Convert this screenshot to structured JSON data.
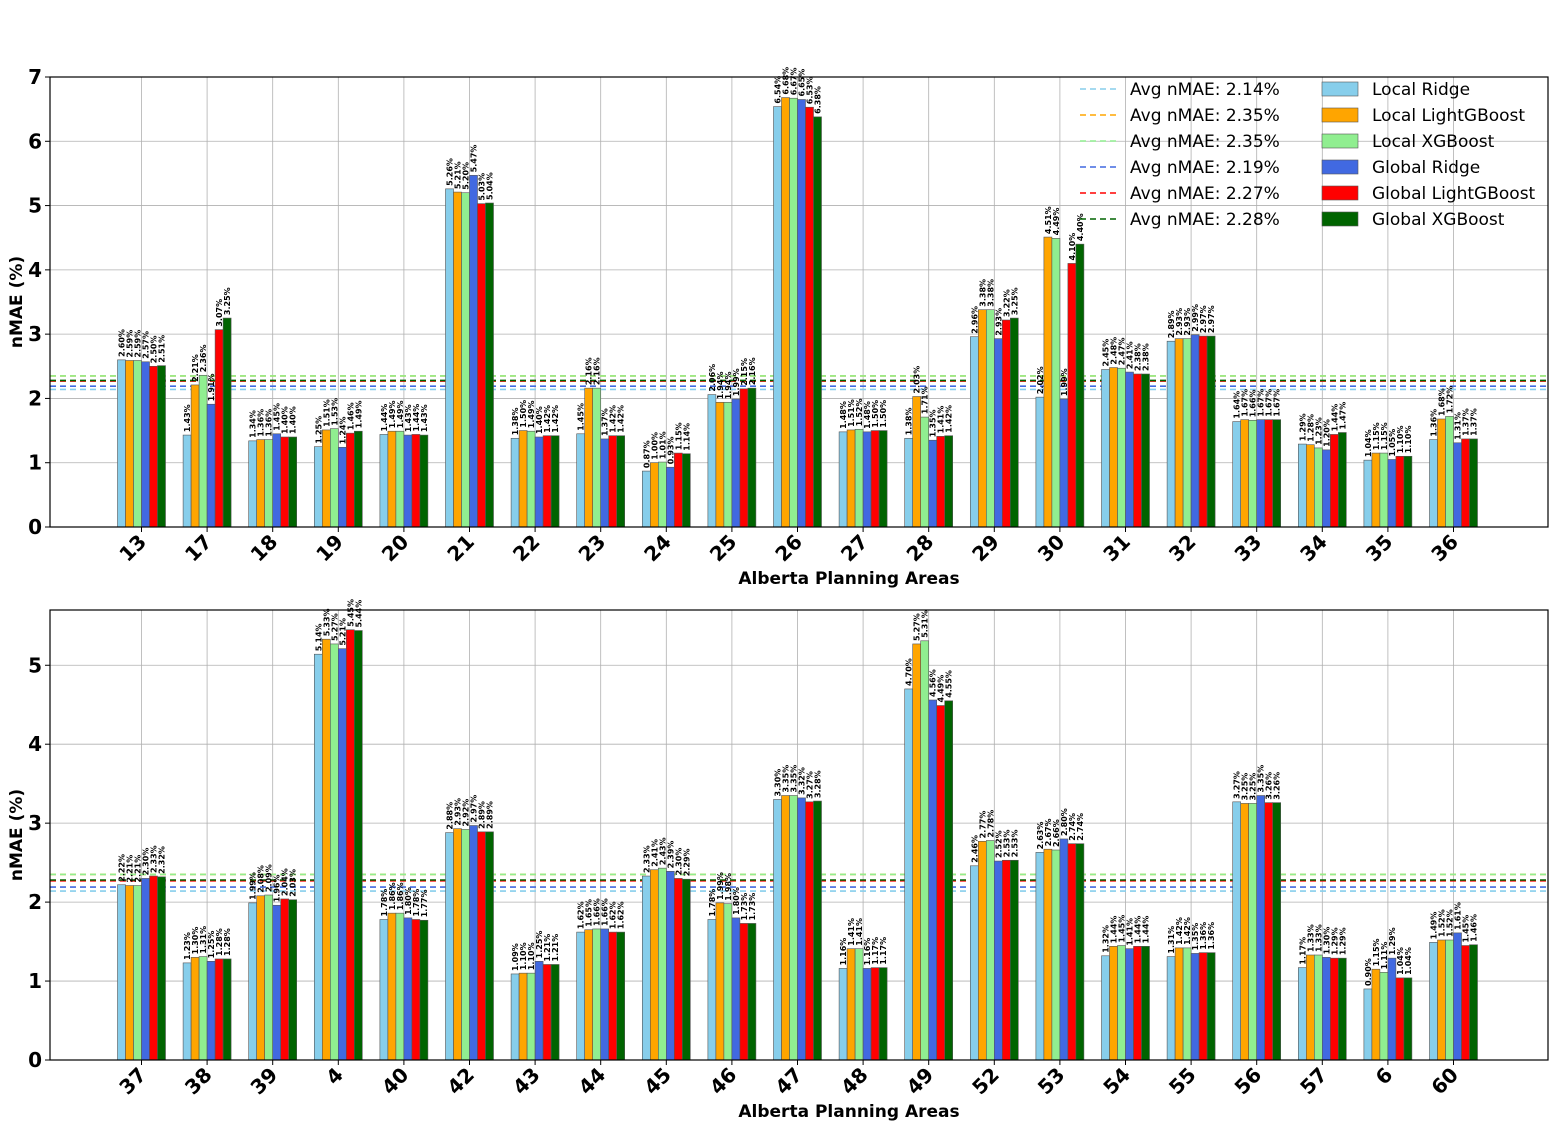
{
  "figure": {
    "legend_position": "upper-right of top panel"
  },
  "series_styles": [
    {
      "name": "Local Ridge",
      "color": "#87ceeb"
    },
    {
      "name": "Local LightGBoost",
      "color": "#ffa500"
    },
    {
      "name": "Local XGBoost",
      "color": "#90ee90"
    },
    {
      "name": "Global Ridge",
      "color": "#4169e1"
    },
    {
      "name": "Global LightGBoost",
      "color": "#ff0000"
    },
    {
      "name": "Global XGBoost",
      "color": "#006400"
    }
  ],
  "avg_lines": [
    {
      "label": "Avg nMAE: 2.14%",
      "value": 2.14,
      "color": "#87ceeb"
    },
    {
      "label": "Avg nMAE: 2.35%",
      "value": 2.35,
      "color": "#ffa500"
    },
    {
      "label": "Avg nMAE: 2.35%",
      "value": 2.35,
      "color": "#90ee90"
    },
    {
      "label": "Avg nMAE: 2.19%",
      "value": 2.19,
      "color": "#4169e1"
    },
    {
      "label": "Avg nMAE: 2.27%",
      "value": 2.27,
      "color": "#ff0000"
    },
    {
      "label": "Avg nMAE: 2.28%",
      "value": 2.28,
      "color": "#006400"
    }
  ],
  "chart_data": [
    {
      "type": "bar",
      "xlabel": "Alberta Planning Areas",
      "ylabel": "nMAE (%)",
      "ylim": [
        0,
        7
      ],
      "yticks": [
        0,
        1,
        2,
        3,
        4,
        5,
        6,
        7
      ],
      "grid": true,
      "categories": [
        "13",
        "17",
        "18",
        "19",
        "20",
        "21",
        "22",
        "23",
        "24",
        "25",
        "26",
        "27",
        "28",
        "29",
        "30",
        "31",
        "32",
        "33",
        "34",
        "35",
        "36"
      ],
      "series": [
        {
          "name": "Local Ridge",
          "values": [
            2.6,
            1.43,
            1.34,
            1.25,
            1.44,
            5.26,
            1.38,
            1.45,
            0.87,
            2.06,
            6.54,
            1.48,
            1.38,
            2.96,
            2.02,
            2.45,
            2.89,
            1.64,
            1.29,
            1.04,
            1.36
          ]
        },
        {
          "name": "Local LightGBoost",
          "values": [
            2.59,
            2.21,
            1.36,
            1.51,
            1.49,
            5.21,
            1.5,
            2.16,
            1.0,
            1.94,
            6.68,
            1.51,
            2.03,
            3.38,
            4.51,
            2.48,
            2.93,
            1.67,
            1.28,
            1.15,
            1.68
          ]
        },
        {
          "name": "Local XGBoost",
          "values": [
            2.59,
            2.36,
            1.36,
            1.53,
            1.49,
            5.2,
            1.49,
            2.16,
            1.01,
            1.94,
            6.67,
            1.52,
            1.71,
            3.38,
            4.49,
            2.47,
            2.93,
            1.66,
            1.23,
            1.15,
            1.72
          ]
        },
        {
          "name": "Global Ridge",
          "values": [
            2.57,
            1.91,
            1.45,
            1.24,
            1.43,
            5.47,
            1.4,
            1.37,
            0.93,
            1.99,
            6.65,
            1.48,
            1.35,
            2.93,
            1.99,
            2.41,
            2.99,
            1.67,
            1.2,
            1.05,
            1.31
          ]
        },
        {
          "name": "Global LightGBoost",
          "values": [
            2.5,
            3.07,
            1.4,
            1.46,
            1.44,
            5.03,
            1.42,
            1.42,
            1.15,
            2.15,
            6.53,
            1.5,
            1.41,
            3.22,
            4.1,
            2.38,
            2.97,
            1.67,
            1.44,
            1.1,
            1.37
          ]
        },
        {
          "name": "Global XGBoost",
          "values": [
            2.51,
            3.25,
            1.4,
            1.49,
            1.43,
            5.04,
            1.42,
            1.42,
            1.14,
            2.16,
            6.38,
            1.5,
            1.42,
            3.25,
            4.4,
            2.38,
            2.97,
            1.67,
            1.47,
            1.1,
            1.37
          ]
        }
      ]
    },
    {
      "type": "bar",
      "xlabel": "Alberta Planning Areas",
      "ylabel": "nMAE (%)",
      "ylim": [
        0,
        5.7
      ],
      "yticks": [
        0,
        1,
        2,
        3,
        4,
        5
      ],
      "grid": true,
      "categories": [
        "37",
        "38",
        "39",
        "4",
        "40",
        "42",
        "43",
        "44",
        "45",
        "46",
        "47",
        "48",
        "49",
        "52",
        "53",
        "54",
        "55",
        "56",
        "57",
        "6",
        "60"
      ],
      "series": [
        {
          "name": "Local Ridge",
          "values": [
            2.22,
            1.23,
            1.99,
            5.14,
            1.78,
            2.88,
            1.09,
            1.62,
            2.33,
            1.78,
            3.3,
            1.16,
            4.7,
            2.46,
            2.63,
            1.32,
            1.31,
            3.27,
            1.17,
            0.9,
            1.49
          ]
        },
        {
          "name": "Local LightGBoost",
          "values": [
            2.21,
            1.3,
            2.08,
            5.33,
            1.86,
            2.93,
            1.1,
            1.65,
            2.41,
            1.99,
            3.35,
            1.41,
            5.27,
            2.77,
            2.67,
            1.44,
            1.42,
            3.25,
            1.33,
            1.15,
            1.52
          ]
        },
        {
          "name": "Local XGBoost",
          "values": [
            2.21,
            1.31,
            2.09,
            5.27,
            1.86,
            2.92,
            1.1,
            1.66,
            2.43,
            1.98,
            3.35,
            1.41,
            5.31,
            2.78,
            2.66,
            1.45,
            1.42,
            3.25,
            1.33,
            1.11,
            1.52
          ]
        },
        {
          "name": "Global Ridge",
          "values": [
            2.3,
            1.25,
            1.96,
            5.21,
            1.8,
            2.97,
            1.25,
            1.66,
            2.39,
            1.8,
            3.32,
            1.16,
            4.56,
            2.52,
            2.8,
            1.41,
            1.35,
            3.35,
            1.3,
            1.29,
            1.61
          ]
        },
        {
          "name": "Global LightGBoost",
          "values": [
            2.33,
            1.28,
            2.04,
            5.45,
            1.78,
            2.89,
            1.21,
            1.62,
            2.3,
            1.73,
            3.27,
            1.17,
            4.49,
            2.53,
            2.74,
            1.44,
            1.36,
            3.26,
            1.29,
            1.04,
            1.45
          ]
        },
        {
          "name": "Global XGBoost",
          "values": [
            2.32,
            1.28,
            2.03,
            5.44,
            1.77,
            2.89,
            1.21,
            1.62,
            2.29,
            1.73,
            3.28,
            1.17,
            4.55,
            2.53,
            2.74,
            1.44,
            1.36,
            3.26,
            1.29,
            1.04,
            1.46
          ]
        }
      ]
    }
  ]
}
